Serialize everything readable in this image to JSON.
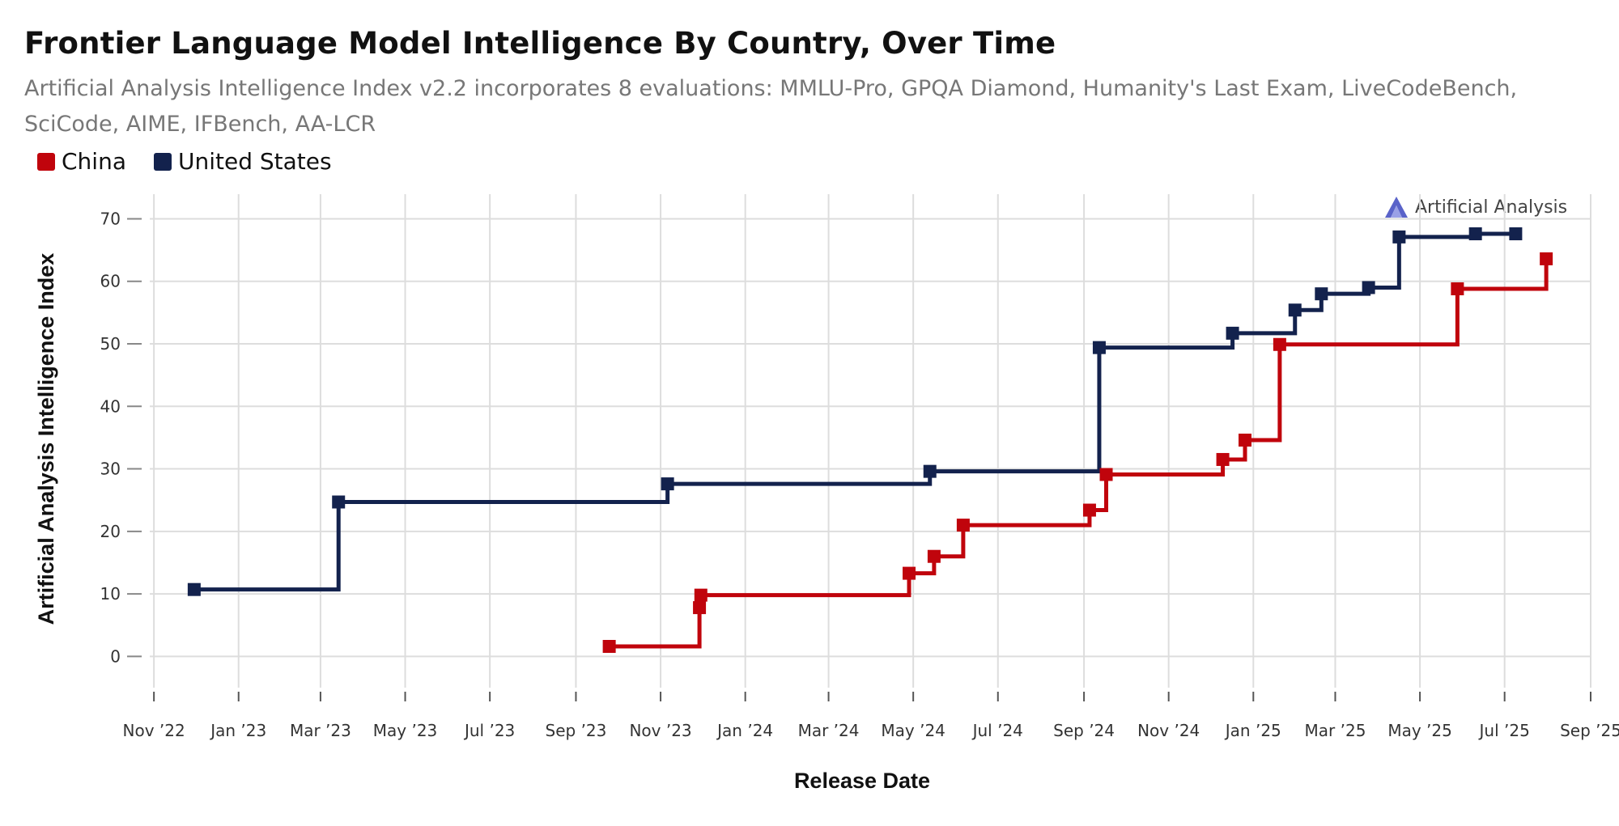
{
  "title": "Frontier Language Model Intelligence By Country, Over Time",
  "subtitle": "Artificial Analysis Intelligence Index v2.2 incorporates 8 evaluations: MMLU-Pro, GPQA Diamond, Humanity's Last Exam, LiveCodeBench, SciCode, AIME, IFBench, AA-LCR",
  "brand": "Artificial Analysis",
  "colors": {
    "china": "#c0040c",
    "united_states": "#13224d",
    "grid": "#dddddd"
  },
  "legend": [
    {
      "label": "China",
      "color": "#c0040c"
    },
    {
      "label": "United States",
      "color": "#13224d"
    }
  ],
  "chart_data": {
    "type": "line",
    "step": true,
    "title": "Frontier Language Model Intelligence By Country, Over Time",
    "xlabel": "Release Date",
    "ylabel": "Artificial Analysis Intelligence Index",
    "ylim": [
      -5,
      72
    ],
    "yticks": [
      0,
      10,
      20,
      30,
      40,
      50,
      60,
      70
    ],
    "xlim": [
      "2022-10-29",
      "2025-09-01"
    ],
    "xticks": [
      {
        "date": "2022-11-01",
        "label": "Nov '22"
      },
      {
        "date": "2023-01-01",
        "label": "Jan '23"
      },
      {
        "date": "2023-03-01",
        "label": "Mar '23"
      },
      {
        "date": "2023-05-01",
        "label": "May '23"
      },
      {
        "date": "2023-07-01",
        "label": "Jul '23"
      },
      {
        "date": "2023-09-01",
        "label": "Sep '23"
      },
      {
        "date": "2023-11-01",
        "label": "Nov '23"
      },
      {
        "date": "2024-01-01",
        "label": "Jan '24"
      },
      {
        "date": "2024-03-01",
        "label": "Mar '24"
      },
      {
        "date": "2024-05-01",
        "label": "May '24"
      },
      {
        "date": "2024-07-01",
        "label": "Jul '24"
      },
      {
        "date": "2024-09-01",
        "label": "Sep '24"
      },
      {
        "date": "2024-11-01",
        "label": "Nov '24"
      },
      {
        "date": "2025-01-01",
        "label": "Jan '25"
      },
      {
        "date": "2025-03-01",
        "label": "Mar '25"
      },
      {
        "date": "2025-05-01",
        "label": "May '25"
      },
      {
        "date": "2025-07-01",
        "label": "Jul '25"
      },
      {
        "date": "2025-09-01",
        "label": "Sep '25"
      }
    ],
    "grid": true,
    "legend_position": "top-left",
    "series": [
      {
        "name": "United States",
        "color": "#13224d",
        "points": [
          {
            "x": "2022-11-30",
            "y": 10.7
          },
          {
            "x": "2023-03-14",
            "y": 24.7
          },
          {
            "x": "2023-11-06",
            "y": 27.6
          },
          {
            "x": "2024-05-13",
            "y": 29.6
          },
          {
            "x": "2024-09-12",
            "y": 49.4
          },
          {
            "x": "2024-12-17",
            "y": 51.7
          },
          {
            "x": "2025-01-31",
            "y": 55.4
          },
          {
            "x": "2025-02-19",
            "y": 58.0
          },
          {
            "x": "2025-03-25",
            "y": 59.0
          },
          {
            "x": "2025-04-16",
            "y": 67.1
          },
          {
            "x": "2025-06-10",
            "y": 67.6
          },
          {
            "x": "2025-07-09",
            "y": 67.6
          }
        ]
      },
      {
        "name": "China",
        "color": "#c0040c",
        "points": [
          {
            "x": "2023-09-25",
            "y": 1.6
          },
          {
            "x": "2023-11-29",
            "y": 7.8
          },
          {
            "x": "2023-11-30",
            "y": 9.8
          },
          {
            "x": "2024-04-28",
            "y": 13.3
          },
          {
            "x": "2024-05-16",
            "y": 16.0
          },
          {
            "x": "2024-06-06",
            "y": 21.0
          },
          {
            "x": "2024-09-05",
            "y": 23.4
          },
          {
            "x": "2024-09-17",
            "y": 29.1
          },
          {
            "x": "2024-12-10",
            "y": 31.5
          },
          {
            "x": "2024-12-26",
            "y": 34.6
          },
          {
            "x": "2025-01-20",
            "y": 49.9
          },
          {
            "x": "2025-05-28",
            "y": 58.8
          },
          {
            "x": "2025-07-31",
            "y": 63.6
          }
        ]
      }
    ]
  }
}
